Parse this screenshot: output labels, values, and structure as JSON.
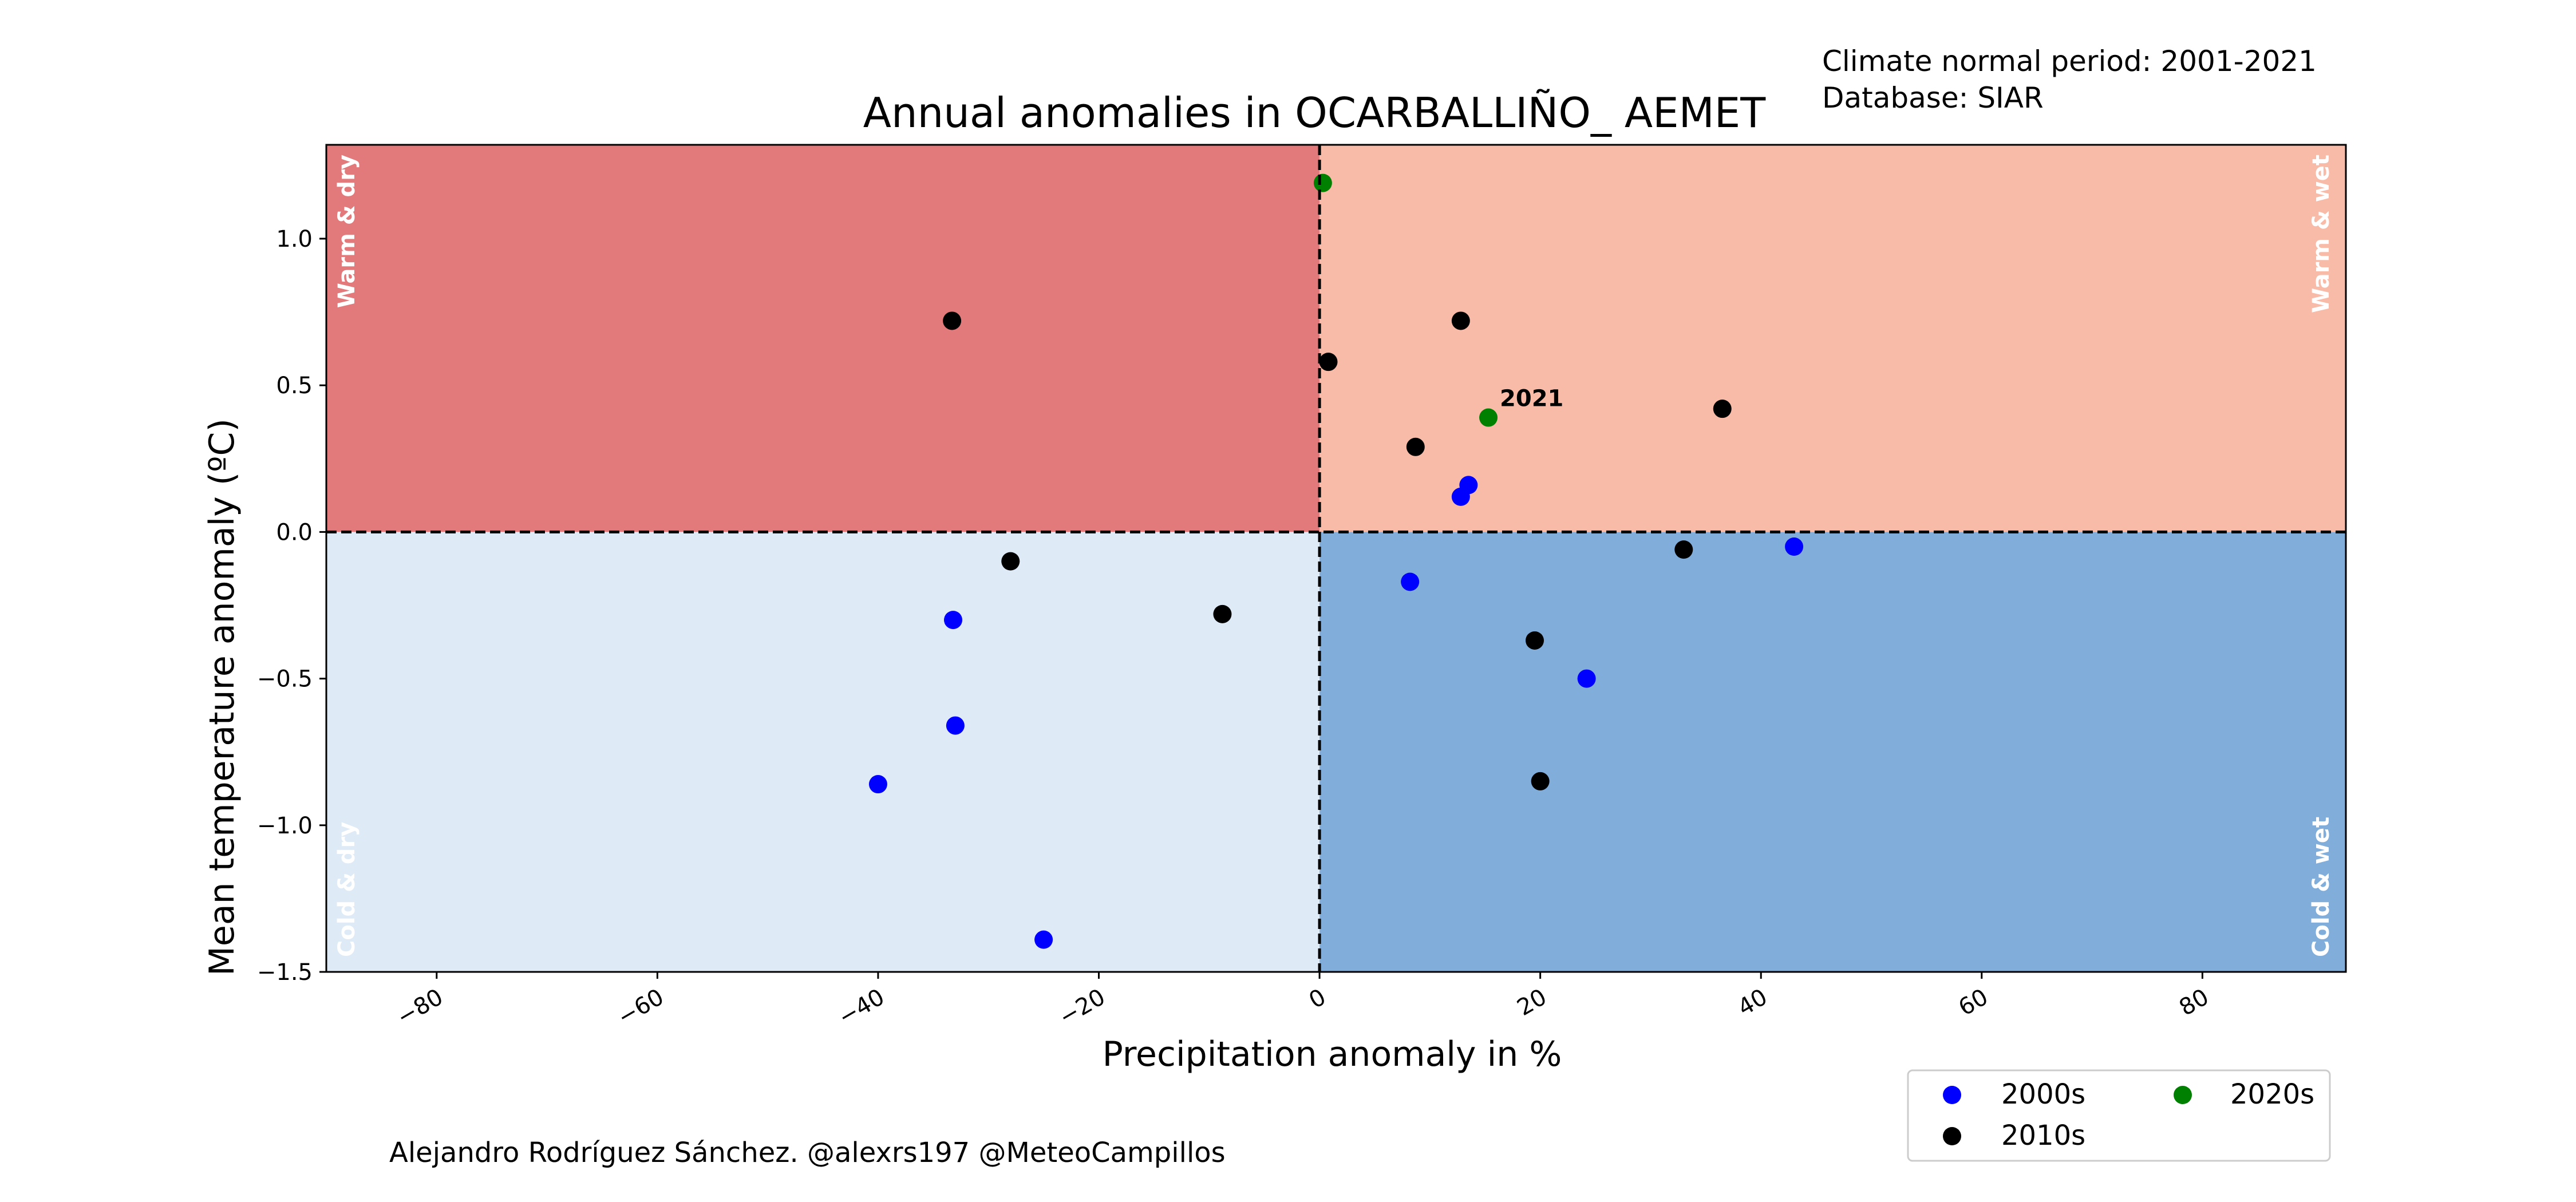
{
  "header": {
    "normal_period": "Climate normal period: 2001-2021",
    "database": "Database: SIAR"
  },
  "credit": "Alejandro Rodríguez Sánchez. @alexrs197 @MeteoCampillos",
  "colors": {
    "warm_dry": "#e27a7c",
    "warm_wet": "#f8bba8",
    "cold_dry": "#deeaf6",
    "cold_wet": "#81adda",
    "s2000": "#0000ff",
    "s2010": "#000000",
    "s2020": "#008000"
  },
  "chart_data": {
    "type": "scatter",
    "title": "Annual anomalies in OCARBALLIÑO_ AEMET",
    "xlabel": "Precipitation anomaly in %",
    "ylabel": "Mean temperature anomaly (ºC)",
    "xlim": [
      -90,
      93
    ],
    "ylim": [
      -1.5,
      1.32
    ],
    "xticks": [
      -80,
      -60,
      -40,
      -20,
      0,
      20,
      40,
      60,
      80
    ],
    "xtick_labels": [
      "−80",
      "−60",
      "−40",
      "−20",
      "0",
      "20",
      "40",
      "60",
      "80"
    ],
    "yticks": [
      -1.5,
      -1.0,
      -0.5,
      0.0,
      0.5,
      1.0
    ],
    "ytick_labels": [
      "−1.5",
      "−1.0",
      "−0.5",
      "0.0",
      "0.5",
      "1.0"
    ],
    "quadrant_labels": {
      "warm_dry": "Warm & dry",
      "warm_wet": "Warm & wet",
      "cold_dry": "Cold & dry",
      "cold_wet": "Cold & wet"
    },
    "legend": {
      "placement": "below-right",
      "ncol": 2
    },
    "series": [
      {
        "name": "2000s",
        "color": "#0000ff",
        "points": [
          [
            -33.2,
            -0.3
          ],
          [
            -33.0,
            -0.66
          ],
          [
            -40.0,
            -0.86
          ],
          [
            -25.0,
            -1.39
          ],
          [
            8.2,
            -0.17
          ],
          [
            13.5,
            0.16
          ],
          [
            12.8,
            0.12
          ],
          [
            24.2,
            -0.5
          ],
          [
            43.0,
            -0.05
          ]
        ]
      },
      {
        "name": "2010s",
        "color": "#000000",
        "points": [
          [
            -33.3,
            0.72
          ],
          [
            0.8,
            0.58
          ],
          [
            12.8,
            0.72
          ],
          [
            8.7,
            0.29
          ],
          [
            36.5,
            0.42
          ],
          [
            -28.0,
            -0.1
          ],
          [
            -8.8,
            -0.28
          ],
          [
            19.5,
            -0.37
          ],
          [
            20.0,
            -0.85
          ],
          [
            33.0,
            -0.06
          ]
        ]
      },
      {
        "name": "2020s",
        "color": "#008000",
        "points": [
          [
            0.3,
            1.19
          ],
          [
            15.3,
            0.39
          ]
        ]
      }
    ],
    "annotations": [
      {
        "text": "2021",
        "x": 15.3,
        "y": 0.39
      }
    ]
  }
}
